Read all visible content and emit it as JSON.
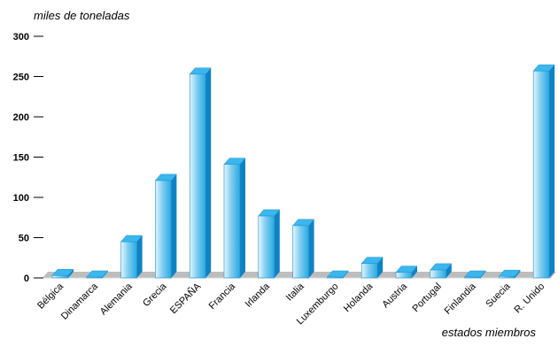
{
  "chart_data": {
    "type": "bar",
    "title": "",
    "ylabel": "miles de toneladas",
    "xlabel": "estados miembros",
    "ylim": [
      0,
      300
    ],
    "yticks": [
      0,
      50,
      100,
      150,
      200,
      250,
      300
    ],
    "grid": false,
    "style": "3d",
    "bar_color": "#29a9e1",
    "floor_color": "#bdbdbd",
    "categories": [
      "Bélgica",
      "Dinamarca",
      "Alemania",
      "Grecia",
      "ESPAÑA",
      "Francia",
      "Irlanda",
      "Italia",
      "Luxemburgo",
      "Holanda",
      "Austria",
      "Portugal",
      "Finlandia",
      "Suecia",
      "R. Unido"
    ],
    "series": [
      {
        "values": [
          3,
          1,
          45,
          121,
          253,
          141,
          77,
          65,
          0,
          18,
          7,
          10,
          0,
          2,
          257
        ]
      }
    ]
  }
}
